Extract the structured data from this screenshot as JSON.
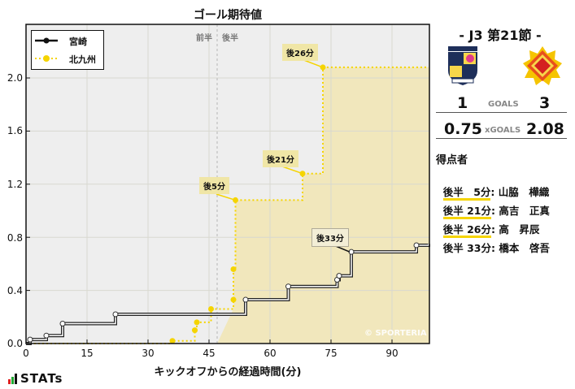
{
  "chart_title": "ゴール期待値",
  "legend": [
    {
      "label": "宮崎",
      "color": "#111111",
      "style": "solid"
    },
    {
      "label": "北九州",
      "color": "#f5d400",
      "style": "dotted"
    }
  ],
  "half_labels": {
    "first": "前半",
    "second": "後半"
  },
  "annotations": {
    "a1": "後5分",
    "a2": "後21分",
    "a3": "後26分",
    "a4": "後33分"
  },
  "copyright": "© SPORTERIA",
  "logo": "STATs",
  "chart_data": {
    "type": "line",
    "title": "ゴール期待値",
    "xlabel": "キックオフからの経過時間(分)",
    "ylabel": "",
    "xlim": [
      0,
      99
    ],
    "ylim": [
      0,
      2.4
    ],
    "xticks": [
      0,
      15,
      30,
      45,
      60,
      75,
      90
    ],
    "yticks": [
      "0.0",
      "0.4",
      "0.8",
      "1.2",
      "1.6",
      "2.0"
    ],
    "grid": true,
    "legend_position": "upper left",
    "halftime_marker_minute": 47,
    "series": [
      {
        "name": "宮崎",
        "step": true,
        "points": [
          [
            0,
            0
          ],
          [
            1,
            0.03
          ],
          [
            5,
            0.06
          ],
          [
            9,
            0.15
          ],
          [
            22,
            0.22
          ],
          [
            54,
            0.33
          ],
          [
            64.5,
            0.43
          ],
          [
            76.5,
            0.48
          ],
          [
            77,
            0.51
          ],
          [
            80,
            0.69
          ],
          [
            96,
            0.74
          ],
          [
            99,
            0.75
          ]
        ]
      },
      {
        "name": "北九州",
        "step": true,
        "points": [
          [
            0,
            0
          ],
          [
            36,
            0.02
          ],
          [
            41.5,
            0.1
          ],
          [
            42,
            0.16
          ],
          [
            45.5,
            0.26
          ],
          [
            51,
            0.33
          ],
          [
            51,
            0.56
          ],
          [
            51.5,
            1.08
          ],
          [
            68,
            1.28
          ],
          [
            73,
            2.08
          ],
          [
            99,
            2.08
          ]
        ]
      }
    ],
    "goal_annotations": [
      {
        "team": "北九州",
        "label": "後5分",
        "minute": 51.5,
        "xg": 1.08
      },
      {
        "team": "北九州",
        "label": "後21分",
        "minute": 68,
        "xg": 1.28
      },
      {
        "team": "北九州",
        "label": "後26分",
        "minute": 73,
        "xg": 2.08
      },
      {
        "team": "宮崎",
        "label": "後33分",
        "minute": 80,
        "xg": 0.69
      }
    ]
  },
  "panel": {
    "match_title": "-  J3 第21節  -",
    "home": {
      "name": "宮崎",
      "goals": "1",
      "xg": "0.75"
    },
    "away": {
      "name": "北九州",
      "goals": "3",
      "xg": "2.08"
    },
    "goals_label": "GOALS",
    "xgoals_label": "xGOALS",
    "scorers_title": "得点者",
    "scorers": [
      {
        "time": "後半　5分",
        "name": ": 山脇　樺織",
        "team": "away"
      },
      {
        "time": "後半 21分",
        "name": ": 高吉　正真",
        "team": "away"
      },
      {
        "time": "後半 26分",
        "name": ": 高　昇辰",
        "team": "away"
      },
      {
        "time": "後半 33分",
        "name": ": 橋本　啓吾",
        "team": "home"
      }
    ]
  }
}
